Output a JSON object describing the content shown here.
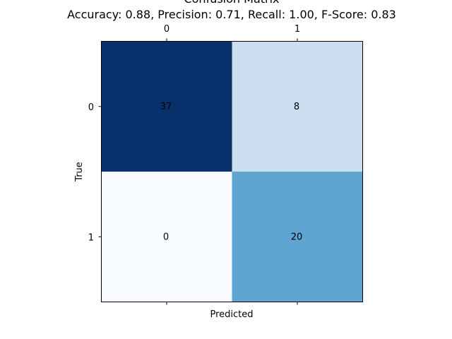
{
  "chart_data": {
    "type": "heatmap",
    "title": "Confusion Matrix",
    "subtitle": "Accuracy: 0.88, Precision: 0.71, Recall: 1.00, F-Score: 0.83",
    "xlabel": "Predicted",
    "ylabel": "True",
    "x_tick_labels": [
      "0",
      "1"
    ],
    "y_tick_labels": [
      "0",
      "1"
    ],
    "x_ticks_position": "top-and-bottom",
    "colormap": "Blues",
    "value_range": [
      0,
      37
    ],
    "grid": false,
    "matrix": [
      [
        37,
        8
      ],
      [
        0,
        20
      ]
    ],
    "cell_labels": [
      [
        "37",
        "8"
      ],
      [
        "0",
        "20"
      ]
    ],
    "cell_colors": [
      [
        "#08306b",
        "#ccdff1"
      ],
      [
        "#f7fbff",
        "#5ea5d2"
      ]
    ]
  }
}
